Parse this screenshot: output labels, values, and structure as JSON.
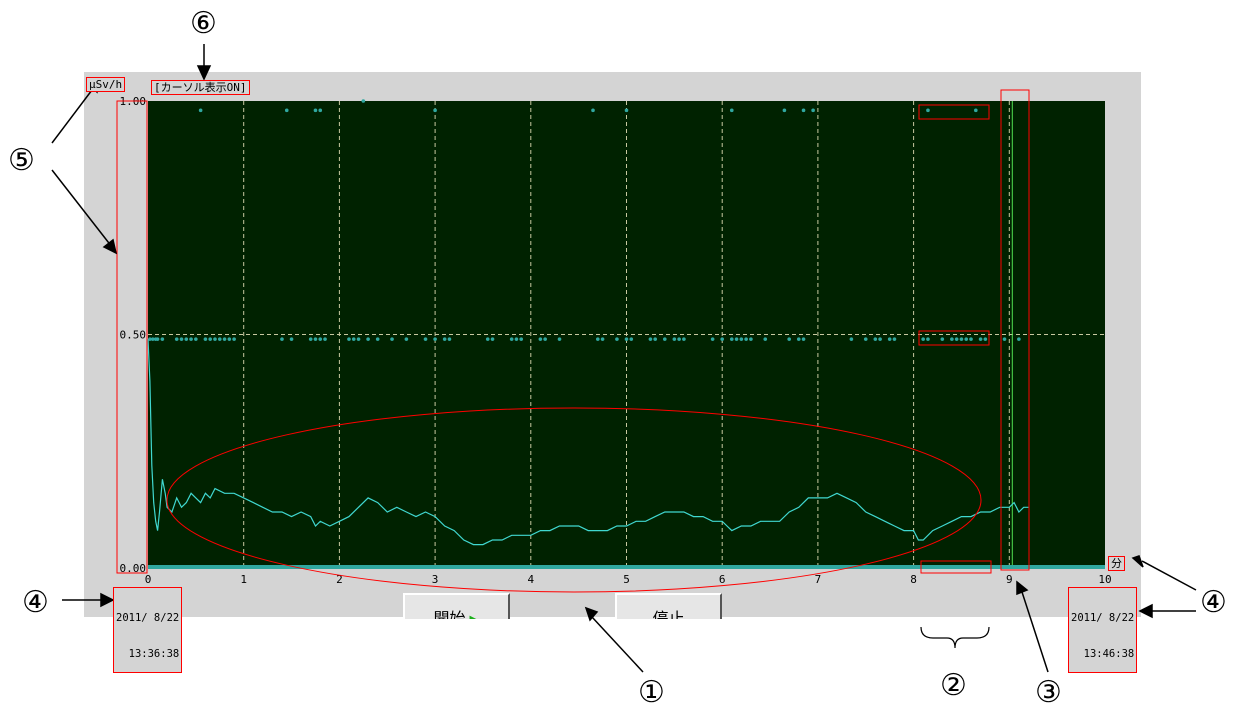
{
  "unit_label": "μSv/h",
  "cursor_status": "[カーソル表示ON]",
  "x_unit_label": "分",
  "start_time": {
    "date": "2011/ 8/22",
    "time": "13:36:38"
  },
  "end_time": {
    "date": "2011/ 8/22",
    "time": "13:46:38"
  },
  "buttons": {
    "start": "開始",
    "stop": "停止"
  },
  "callouts": [
    "①",
    "②",
    "③",
    "④",
    "⑤",
    "⑥"
  ],
  "colors": {
    "plot_bg": "#002200",
    "series": "#40d8d0",
    "dots": "#30a8a0",
    "grid": "#c8c8a0",
    "annotation": "#ff0000",
    "cursor": "#50e050"
  },
  "icons": {
    "start_button_icon": "play-triangle-icon"
  },
  "chart_data": {
    "type": "line",
    "xlabel": "分",
    "ylabel": "μSv/h",
    "xlim": [
      0,
      10
    ],
    "ylim": [
      0,
      1
    ],
    "xticks": [
      "0",
      "1",
      "2",
      "3",
      "4",
      "5",
      "6",
      "7",
      "8",
      "9",
      "10"
    ],
    "yticks": [
      "0.00",
      "0.50",
      "1.00"
    ],
    "grid": true,
    "cursor_x": 9.0,
    "series": [
      {
        "points": [
          [
            0,
            0.49
          ],
          [
            0.02,
            0.4
          ],
          [
            0.04,
            0.22
          ],
          [
            0.06,
            0.14
          ],
          [
            0.08,
            0.1
          ],
          [
            0.1,
            0.08
          ],
          [
            0.12,
            0.12
          ],
          [
            0.15,
            0.19
          ],
          [
            0.18,
            0.16
          ],
          [
            0.2,
            0.13
          ],
          [
            0.25,
            0.12
          ],
          [
            0.3,
            0.15
          ],
          [
            0.35,
            0.13
          ],
          [
            0.4,
            0.14
          ],
          [
            0.45,
            0.16
          ],
          [
            0.5,
            0.15
          ],
          [
            0.55,
            0.14
          ],
          [
            0.6,
            0.16
          ],
          [
            0.65,
            0.15
          ],
          [
            0.7,
            0.17
          ],
          [
            0.8,
            0.16
          ],
          [
            0.9,
            0.16
          ],
          [
            1.0,
            0.15
          ],
          [
            1.1,
            0.14
          ],
          [
            1.2,
            0.13
          ],
          [
            1.3,
            0.12
          ],
          [
            1.4,
            0.12
          ],
          [
            1.5,
            0.11
          ],
          [
            1.6,
            0.12
          ],
          [
            1.7,
            0.11
          ],
          [
            1.75,
            0.09
          ],
          [
            1.8,
            0.1
          ],
          [
            1.9,
            0.09
          ],
          [
            2.0,
            0.1
          ],
          [
            2.1,
            0.11
          ],
          [
            2.2,
            0.13
          ],
          [
            2.3,
            0.15
          ],
          [
            2.4,
            0.14
          ],
          [
            2.5,
            0.12
          ],
          [
            2.6,
            0.13
          ],
          [
            2.7,
            0.12
          ],
          [
            2.8,
            0.11
          ],
          [
            2.9,
            0.12
          ],
          [
            3.0,
            0.11
          ],
          [
            3.1,
            0.09
          ],
          [
            3.2,
            0.08
          ],
          [
            3.3,
            0.06
          ],
          [
            3.4,
            0.05
          ],
          [
            3.5,
            0.05
          ],
          [
            3.6,
            0.06
          ],
          [
            3.7,
            0.06
          ],
          [
            3.8,
            0.07
          ],
          [
            3.9,
            0.07
          ],
          [
            4.0,
            0.07
          ],
          [
            4.1,
            0.08
          ],
          [
            4.2,
            0.08
          ],
          [
            4.3,
            0.09
          ],
          [
            4.4,
            0.09
          ],
          [
            4.5,
            0.09
          ],
          [
            4.6,
            0.08
          ],
          [
            4.7,
            0.08
          ],
          [
            4.8,
            0.08
          ],
          [
            4.9,
            0.09
          ],
          [
            5.0,
            0.09
          ],
          [
            5.1,
            0.1
          ],
          [
            5.2,
            0.1
          ],
          [
            5.3,
            0.11
          ],
          [
            5.4,
            0.12
          ],
          [
            5.5,
            0.12
          ],
          [
            5.6,
            0.12
          ],
          [
            5.7,
            0.11
          ],
          [
            5.8,
            0.11
          ],
          [
            5.9,
            0.1
          ],
          [
            6.0,
            0.1
          ],
          [
            6.05,
            0.09
          ],
          [
            6.1,
            0.08
          ],
          [
            6.2,
            0.09
          ],
          [
            6.3,
            0.09
          ],
          [
            6.4,
            0.1
          ],
          [
            6.5,
            0.1
          ],
          [
            6.6,
            0.1
          ],
          [
            6.7,
            0.12
          ],
          [
            6.8,
            0.13
          ],
          [
            6.9,
            0.15
          ],
          [
            7.0,
            0.15
          ],
          [
            7.1,
            0.15
          ],
          [
            7.2,
            0.16
          ],
          [
            7.3,
            0.15
          ],
          [
            7.4,
            0.14
          ],
          [
            7.5,
            0.12
          ],
          [
            7.6,
            0.11
          ],
          [
            7.7,
            0.1
          ],
          [
            7.8,
            0.09
          ],
          [
            7.9,
            0.08
          ],
          [
            8.0,
            0.08
          ],
          [
            8.05,
            0.06
          ],
          [
            8.1,
            0.06
          ],
          [
            8.2,
            0.08
          ],
          [
            8.3,
            0.09
          ],
          [
            8.4,
            0.1
          ],
          [
            8.5,
            0.11
          ],
          [
            8.6,
            0.11
          ],
          [
            8.7,
            0.12
          ],
          [
            8.8,
            0.12
          ],
          [
            8.9,
            0.13
          ],
          [
            9.0,
            0.13
          ],
          [
            9.05,
            0.14
          ],
          [
            9.1,
            0.12
          ],
          [
            9.15,
            0.13
          ],
          [
            9.2,
            0.13
          ]
        ]
      },
      {
        "type": "scatter",
        "points": [
          [
            0.55,
            0.98
          ],
          [
            1.45,
            0.98
          ],
          [
            1.75,
            0.98
          ],
          [
            1.8,
            0.98
          ],
          [
            2.25,
            1.0
          ],
          [
            3.0,
            0.98
          ],
          [
            4.65,
            0.98
          ],
          [
            5.0,
            0.98
          ],
          [
            6.1,
            0.98
          ],
          [
            6.65,
            0.98
          ],
          [
            6.85,
            0.98
          ],
          [
            6.95,
            0.98
          ],
          [
            8.15,
            0.98
          ],
          [
            8.65,
            0.98
          ],
          [
            0.02,
            0.49
          ],
          [
            0.05,
            0.49
          ],
          [
            0.08,
            0.49
          ],
          [
            0.1,
            0.49
          ],
          [
            0.15,
            0.49
          ],
          [
            0.3,
            0.49
          ],
          [
            0.35,
            0.49
          ],
          [
            0.4,
            0.49
          ],
          [
            0.45,
            0.49
          ],
          [
            0.5,
            0.49
          ],
          [
            0.6,
            0.49
          ],
          [
            0.65,
            0.49
          ],
          [
            0.7,
            0.49
          ],
          [
            0.75,
            0.49
          ],
          [
            0.8,
            0.49
          ],
          [
            0.85,
            0.49
          ],
          [
            0.9,
            0.49
          ],
          [
            1.4,
            0.49
          ],
          [
            1.5,
            0.49
          ],
          [
            1.7,
            0.49
          ],
          [
            1.75,
            0.49
          ],
          [
            1.8,
            0.49
          ],
          [
            1.85,
            0.49
          ],
          [
            2.1,
            0.49
          ],
          [
            2.15,
            0.49
          ],
          [
            2.2,
            0.49
          ],
          [
            2.3,
            0.49
          ],
          [
            2.4,
            0.49
          ],
          [
            2.55,
            0.49
          ],
          [
            2.7,
            0.49
          ],
          [
            2.9,
            0.49
          ],
          [
            3.0,
            0.49
          ],
          [
            3.1,
            0.49
          ],
          [
            3.15,
            0.49
          ],
          [
            3.55,
            0.49
          ],
          [
            3.6,
            0.49
          ],
          [
            3.8,
            0.49
          ],
          [
            3.85,
            0.49
          ],
          [
            3.9,
            0.49
          ],
          [
            4.1,
            0.49
          ],
          [
            4.15,
            0.49
          ],
          [
            4.3,
            0.49
          ],
          [
            4.7,
            0.49
          ],
          [
            4.75,
            0.49
          ],
          [
            4.9,
            0.49
          ],
          [
            5.0,
            0.49
          ],
          [
            5.05,
            0.49
          ],
          [
            5.25,
            0.49
          ],
          [
            5.3,
            0.49
          ],
          [
            5.4,
            0.49
          ],
          [
            5.5,
            0.49
          ],
          [
            5.55,
            0.49
          ],
          [
            5.6,
            0.49
          ],
          [
            5.9,
            0.49
          ],
          [
            6.0,
            0.49
          ],
          [
            6.1,
            0.49
          ],
          [
            6.15,
            0.49
          ],
          [
            6.2,
            0.49
          ],
          [
            6.25,
            0.49
          ],
          [
            6.3,
            0.49
          ],
          [
            6.45,
            0.49
          ],
          [
            6.7,
            0.49
          ],
          [
            6.8,
            0.49
          ],
          [
            6.85,
            0.49
          ],
          [
            7.35,
            0.49
          ],
          [
            7.5,
            0.49
          ],
          [
            7.6,
            0.49
          ],
          [
            7.65,
            0.49
          ],
          [
            7.75,
            0.49
          ],
          [
            7.8,
            0.49
          ],
          [
            8.1,
            0.49
          ],
          [
            8.15,
            0.49
          ],
          [
            8.3,
            0.49
          ],
          [
            8.4,
            0.49
          ],
          [
            8.45,
            0.49
          ],
          [
            8.5,
            0.49
          ],
          [
            8.55,
            0.49
          ],
          [
            8.6,
            0.49
          ],
          [
            8.7,
            0.49
          ],
          [
            8.75,
            0.49
          ],
          [
            8.95,
            0.49
          ],
          [
            9.1,
            0.49
          ]
        ]
      }
    ],
    "annotations": [
      "①",
      "②",
      "③",
      "④",
      "⑤",
      "⑥"
    ]
  }
}
